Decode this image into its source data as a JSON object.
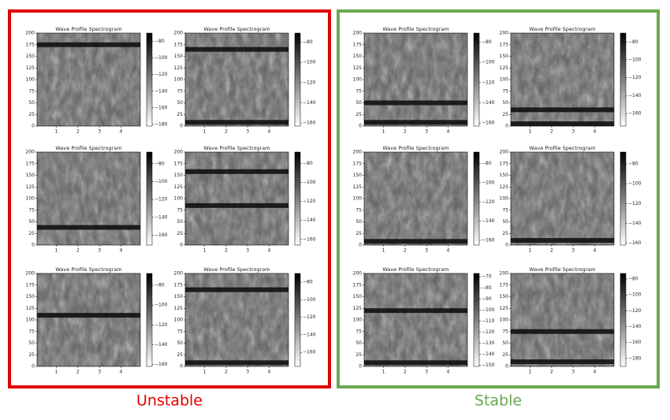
{
  "labels": [
    "Unstable",
    "Stable"
  ],
  "chart_data": [
    {
      "type": "spectrogram",
      "title": "Wave Profile Spectrogram",
      "xlim": [
        0.1,
        4.9
      ],
      "xticks": [
        1,
        2,
        3,
        4
      ],
      "ylim": [
        0,
        200
      ],
      "yticks": [
        0,
        25,
        50,
        75,
        100,
        125,
        150,
        175,
        200
      ],
      "clim": [
        -182,
        -70
      ],
      "cticks": [
        {
          "value": -80,
          "label": "−80"
        },
        {
          "value": -100,
          "label": "−100"
        },
        {
          "value": -120,
          "label": "−120"
        },
        {
          "value": -140,
          "label": "−140"
        },
        {
          "value": -160,
          "label": "−160"
        },
        {
          "value": -180,
          "label": "−180"
        }
      ],
      "dark_bands": [
        175
      ]
    },
    {
      "type": "spectrogram",
      "title": "Wave Profile Spectrogram",
      "xlim": [
        0.1,
        4.9
      ],
      "xticks": [
        1,
        2,
        3,
        4
      ],
      "ylim": [
        0,
        200
      ],
      "yticks": [
        0,
        25,
        50,
        75,
        100,
        125,
        150,
        175,
        200
      ],
      "clim": [
        -163,
        -71
      ],
      "cticks": [
        {
          "value": -80,
          "label": "−80"
        },
        {
          "value": -100,
          "label": "−100"
        },
        {
          "value": -120,
          "label": "−120"
        },
        {
          "value": -140,
          "label": "−140"
        },
        {
          "value": -160,
          "label": "−160"
        }
      ],
      "dark_bands": [
        165,
        8
      ]
    },
    {
      "type": "spectrogram",
      "title": "Wave Profile Spectrogram",
      "xlim": [
        0.1,
        4.9
      ],
      "xticks": [
        1,
        2,
        3,
        4
      ],
      "ylim": [
        0,
        200
      ],
      "yticks": [
        0,
        25,
        50,
        75,
        100,
        125,
        150,
        175,
        200
      ],
      "clim": [
        -171,
        -67
      ],
      "cticks": [
        {
          "value": -80,
          "label": "−80"
        },
        {
          "value": -100,
          "label": "−100"
        },
        {
          "value": -120,
          "label": "−120"
        },
        {
          "value": -140,
          "label": "−140"
        },
        {
          "value": -160,
          "label": "−160"
        }
      ],
      "dark_bands": [
        38
      ]
    },
    {
      "type": "spectrogram",
      "title": "Wave Profile Spectrogram",
      "xlim": [
        0.1,
        4.9
      ],
      "xticks": [
        1,
        2,
        3,
        4
      ],
      "ylim": [
        0,
        200
      ],
      "yticks": [
        0,
        25,
        50,
        75,
        100,
        125,
        150,
        175,
        200
      ],
      "clim": [
        -166,
        -68
      ],
      "cticks": [
        {
          "value": -80,
          "label": "−80"
        },
        {
          "value": -100,
          "label": "−100"
        },
        {
          "value": -120,
          "label": "−120"
        },
        {
          "value": -140,
          "label": "−140"
        },
        {
          "value": -160,
          "label": "−160"
        }
      ],
      "dark_bands": [
        158,
        85
      ]
    },
    {
      "type": "spectrogram",
      "title": "Wave Profile Spectrogram",
      "xlim": [
        0.1,
        4.9
      ],
      "xticks": [
        1,
        2,
        3,
        4
      ],
      "ylim": [
        0,
        200
      ],
      "yticks": [
        0,
        25,
        50,
        75,
        100,
        125,
        150,
        175,
        200
      ],
      "clim": [
        -162,
        -68
      ],
      "cticks": [
        {
          "value": -80,
          "label": "−80"
        },
        {
          "value": -100,
          "label": "−100"
        },
        {
          "value": -120,
          "label": "−120"
        },
        {
          "value": -140,
          "label": "−140"
        },
        {
          "value": -160,
          "label": "−160"
        }
      ],
      "dark_bands": [
        110
      ]
    },
    {
      "type": "spectrogram",
      "title": "Wave Profile Spectrogram",
      "xlim": [
        0.1,
        4.9
      ],
      "xticks": [
        1,
        2,
        3,
        4
      ],
      "ylim": [
        0,
        200
      ],
      "yticks": [
        0,
        25,
        50,
        75,
        100,
        125,
        150,
        175,
        200
      ],
      "clim": [
        -176,
        -70
      ],
      "cticks": [
        {
          "value": -80,
          "label": "−80"
        },
        {
          "value": -100,
          "label": "−100"
        },
        {
          "value": -120,
          "label": "−120"
        },
        {
          "value": -140,
          "label": "−140"
        },
        {
          "value": -160,
          "label": "−160"
        }
      ],
      "dark_bands": [
        165,
        8
      ]
    },
    {
      "type": "spectrogram",
      "title": "Wave Profile Spectrogram",
      "xlim": [
        0.1,
        4.9
      ],
      "xticks": [
        1,
        2,
        3,
        4
      ],
      "ylim": [
        0,
        200
      ],
      "yticks": [
        0,
        25,
        50,
        75,
        100,
        125,
        150,
        175,
        200
      ],
      "clim": [
        -163,
        -71
      ],
      "cticks": [
        {
          "value": -80,
          "label": "−80"
        },
        {
          "value": -100,
          "label": "−100"
        },
        {
          "value": -120,
          "label": "−120"
        },
        {
          "value": -140,
          "label": "−140"
        },
        {
          "value": -160,
          "label": "−160"
        }
      ],
      "dark_bands": [
        50,
        8
      ]
    },
    {
      "type": "spectrogram",
      "title": "Wave Profile Spectrogram",
      "xlim": [
        0.1,
        4.9
      ],
      "xticks": [
        1,
        2,
        3,
        4
      ],
      "ylim": [
        0,
        200
      ],
      "yticks": [
        0,
        25,
        50,
        75,
        100,
        125,
        150,
        175,
        200
      ],
      "clim": [
        -174,
        -70
      ],
      "cticks": [
        {
          "value": -80,
          "label": "−80"
        },
        {
          "value": -100,
          "label": "−100"
        },
        {
          "value": -120,
          "label": "−120"
        },
        {
          "value": -140,
          "label": "−140"
        },
        {
          "value": -160,
          "label": "−160"
        }
      ],
      "dark_bands": [
        35,
        5
      ]
    },
    {
      "type": "spectrogram",
      "title": "Wave Profile Spectrogram",
      "xlim": [
        0.1,
        4.9
      ],
      "xticks": [
        1,
        2,
        3,
        4
      ],
      "ylim": [
        0,
        200
      ],
      "yticks": [
        0,
        25,
        50,
        75,
        100,
        125,
        150,
        175,
        200
      ],
      "clim": [
        -165,
        -68
      ],
      "cticks": [
        {
          "value": -80,
          "label": "−80"
        },
        {
          "value": -100,
          "label": "−100"
        },
        {
          "value": -120,
          "label": "−120"
        },
        {
          "value": -140,
          "label": "−140"
        },
        {
          "value": -160,
          "label": "−160"
        }
      ],
      "dark_bands": [
        8
      ]
    },
    {
      "type": "spectrogram",
      "title": "Wave Profile Spectrogram",
      "xlim": [
        0.1,
        4.9
      ],
      "xticks": [
        1,
        2,
        3,
        4
      ],
      "ylim": [
        0,
        200
      ],
      "yticks": [
        0,
        25,
        50,
        75,
        100,
        125,
        150,
        175,
        200
      ],
      "clim": [
        -162,
        -68
      ],
      "cticks": [
        {
          "value": -80,
          "label": "−80"
        },
        {
          "value": -100,
          "label": "−100"
        },
        {
          "value": -120,
          "label": "−120"
        },
        {
          "value": -140,
          "label": "−140"
        },
        {
          "value": -160,
          "label": "−160"
        }
      ],
      "dark_bands": [
        10
      ]
    },
    {
      "type": "spectrogram",
      "title": "Wave Profile Spectrogram",
      "xlim": [
        0.1,
        4.9
      ],
      "xticks": [
        1,
        2,
        3,
        4
      ],
      "ylim": [
        0,
        200
      ],
      "yticks": [
        0,
        25,
        50,
        75,
        100,
        125,
        150,
        175,
        200
      ],
      "clim": [
        -151,
        -67
      ],
      "cticks": [
        {
          "value": -70,
          "label": "−70"
        },
        {
          "value": -80,
          "label": "−80"
        },
        {
          "value": -90,
          "label": "−90"
        },
        {
          "value": -100,
          "label": "−100"
        },
        {
          "value": -110,
          "label": "−110"
        },
        {
          "value": -120,
          "label": "−120"
        },
        {
          "value": -130,
          "label": "−130"
        },
        {
          "value": -140,
          "label": "−140"
        },
        {
          "value": -150,
          "label": "−150"
        }
      ],
      "dark_bands": [
        120,
        8
      ]
    },
    {
      "type": "spectrogram",
      "title": "Wave Profile Spectrogram",
      "xlim": [
        0.1,
        4.9
      ],
      "xticks": [
        1,
        2,
        3,
        4
      ],
      "ylim": [
        0,
        200
      ],
      "yticks": [
        0,
        25,
        50,
        75,
        100,
        125,
        150,
        175,
        200
      ],
      "clim": [
        -190,
        -73
      ],
      "cticks": [
        {
          "value": -80,
          "label": "−80"
        },
        {
          "value": -100,
          "label": "−100"
        },
        {
          "value": -120,
          "label": "−120"
        },
        {
          "value": -140,
          "label": "−140"
        },
        {
          "value": -160,
          "label": "−160"
        },
        {
          "value": -180,
          "label": "−180"
        }
      ],
      "dark_bands": [
        75,
        10
      ]
    }
  ]
}
